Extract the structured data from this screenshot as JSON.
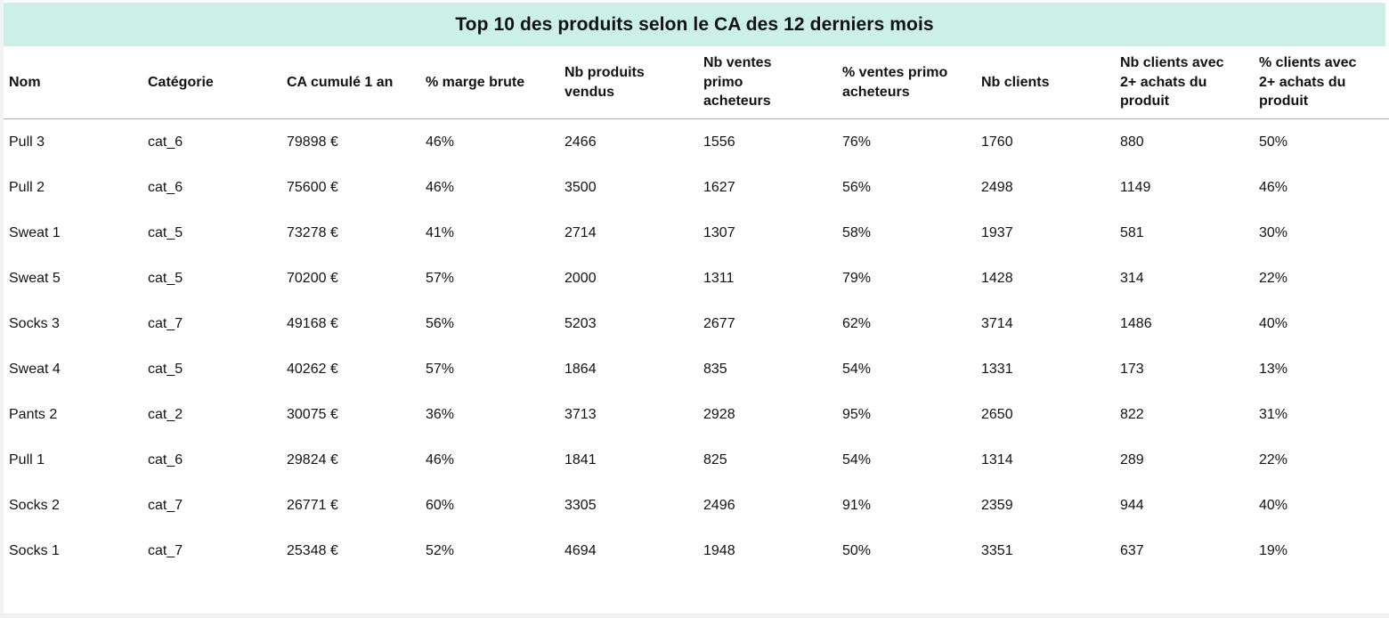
{
  "title": "Top 10 des produits selon le CA des 12 derniers mois",
  "theme": {
    "banner_bg": "#cbf0e6",
    "text_color": "#121212",
    "header_divider": "#b0b0b0",
    "edge_strip_bg": "#f2f2f2"
  },
  "table": {
    "header_display": [
      "Nom",
      "Catégorie",
      "CA cumulé 1 an",
      "% marge brute",
      "Nb produits\nvendus",
      "Nb ventes\nprimo\nacheteurs",
      "% ventes primo\nacheteurs",
      "Nb clients",
      "Nb clients avec\n2+ achats du\nproduit",
      "% clients avec\n2+ achats du\nproduit"
    ]
  },
  "chart_data": {
    "type": "table",
    "title": "Top 10 des produits selon le CA des 12 derniers mois",
    "columns": [
      "Nom",
      "Catégorie",
      "CA cumulé 1 an",
      "% marge brute",
      "Nb produits vendus",
      "Nb ventes primo acheteurs",
      "% ventes primo acheteurs",
      "Nb clients",
      "Nb clients avec 2+ achats du produit",
      "% clients avec 2+ achats du produit"
    ],
    "rows": [
      [
        "Pull 3",
        "cat_6",
        "79898 €",
        "46%",
        "2466",
        "1556",
        "76%",
        "1760",
        "880",
        "50%"
      ],
      [
        "Pull 2",
        "cat_6",
        "75600 €",
        "46%",
        "3500",
        "1627",
        "56%",
        "2498",
        "1149",
        "46%"
      ],
      [
        "Sweat 1",
        "cat_5",
        "73278 €",
        "41%",
        "2714",
        "1307",
        "58%",
        "1937",
        "581",
        "30%"
      ],
      [
        "Sweat 5",
        "cat_5",
        "70200 €",
        "57%",
        "2000",
        "1311",
        "79%",
        "1428",
        "314",
        "22%"
      ],
      [
        "Socks 3",
        "cat_7",
        "49168 €",
        "56%",
        "5203",
        "2677",
        "62%",
        "3714",
        "1486",
        "40%"
      ],
      [
        "Sweat 4",
        "cat_5",
        "40262 €",
        "57%",
        "1864",
        "835",
        "54%",
        "1331",
        "173",
        "13%"
      ],
      [
        "Pants 2",
        "cat_2",
        "30075 €",
        "36%",
        "3713",
        "2928",
        "95%",
        "2650",
        "822",
        "31%"
      ],
      [
        "Pull 1",
        "cat_6",
        "29824 €",
        "46%",
        "1841",
        "825",
        "54%",
        "1314",
        "289",
        "22%"
      ],
      [
        "Socks 2",
        "cat_7",
        "26771 €",
        "60%",
        "3305",
        "2496",
        "91%",
        "2359",
        "944",
        "40%"
      ],
      [
        "Socks 1",
        "cat_7",
        "25348 €",
        "52%",
        "4694",
        "1948",
        "50%",
        "3351",
        "637",
        "19%"
      ]
    ]
  }
}
